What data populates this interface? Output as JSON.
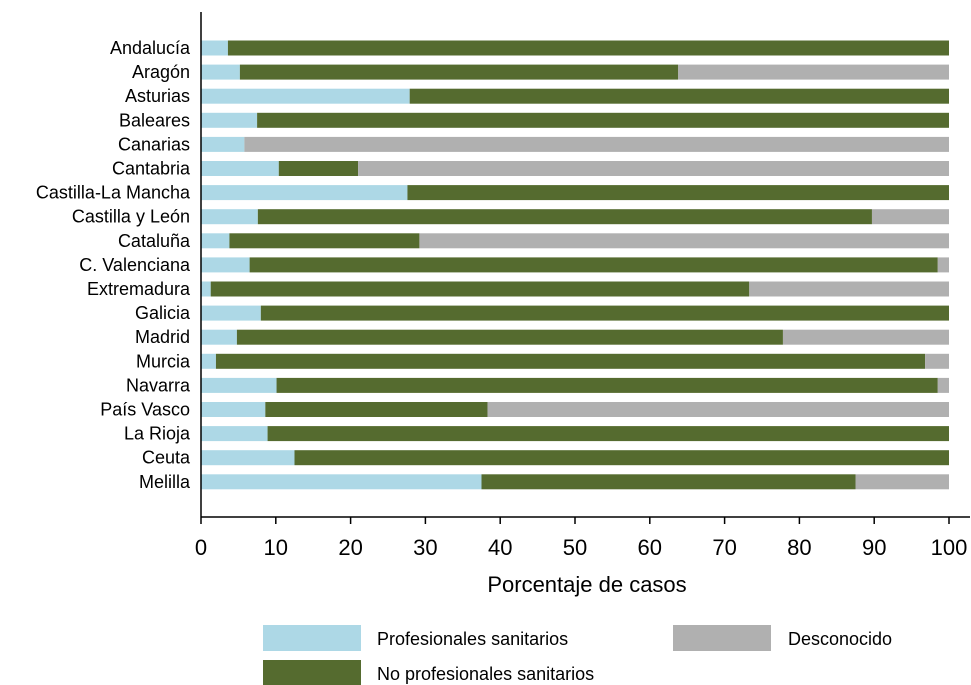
{
  "chart_data": {
    "type": "bar",
    "orientation": "horizontal",
    "stacked": true,
    "xlabel": "Porcentaje de casos",
    "ylabel": "",
    "xlim": [
      0,
      100
    ],
    "xticks": [
      0,
      10,
      20,
      30,
      40,
      50,
      60,
      70,
      80,
      90,
      100
    ],
    "grid": false,
    "legend_position": "bottom",
    "categories": [
      "Andalucía",
      "Aragón",
      "Asturias",
      "Baleares",
      "Canarias",
      "Cantabria",
      "Castilla-La Mancha",
      "Castilla y León",
      "Cataluña",
      "C. Valenciana",
      "Extremadura",
      "Galicia",
      "Madrid",
      "Murcia",
      "Navarra",
      "País Vasco",
      "La Rioja",
      "Ceuta",
      "Melilla"
    ],
    "series": [
      {
        "name": "Profesionales sanitarios",
        "color": "#add8e6",
        "values": [
          3.6,
          5.2,
          27.9,
          7.5,
          5.8,
          10.4,
          27.6,
          7.6,
          3.8,
          6.5,
          1.3,
          8.0,
          4.8,
          2.0,
          10.1,
          8.6,
          8.9,
          12.5,
          37.5
        ]
      },
      {
        "name": "No profesionales sanitarios",
        "color": "#556b2f",
        "values": [
          96.4,
          58.6,
          72.1,
          92.5,
          0.0,
          10.6,
          72.4,
          82.1,
          25.4,
          92.0,
          72.0,
          92.0,
          73.0,
          94.8,
          88.4,
          29.7,
          91.1,
          87.5,
          50.0
        ]
      },
      {
        "name": "Desconocido",
        "color": "#b0b0b0",
        "values": [
          0.0,
          36.2,
          0.0,
          0.0,
          94.2,
          79.0,
          0.0,
          10.3,
          70.8,
          1.5,
          26.7,
          0.0,
          22.2,
          3.2,
          1.5,
          61.7,
          0.0,
          0.0,
          12.5
        ]
      }
    ],
    "legend_order": [
      "Profesionales sanitarios",
      "Desconocido",
      "No profesionales sanitarios"
    ]
  }
}
